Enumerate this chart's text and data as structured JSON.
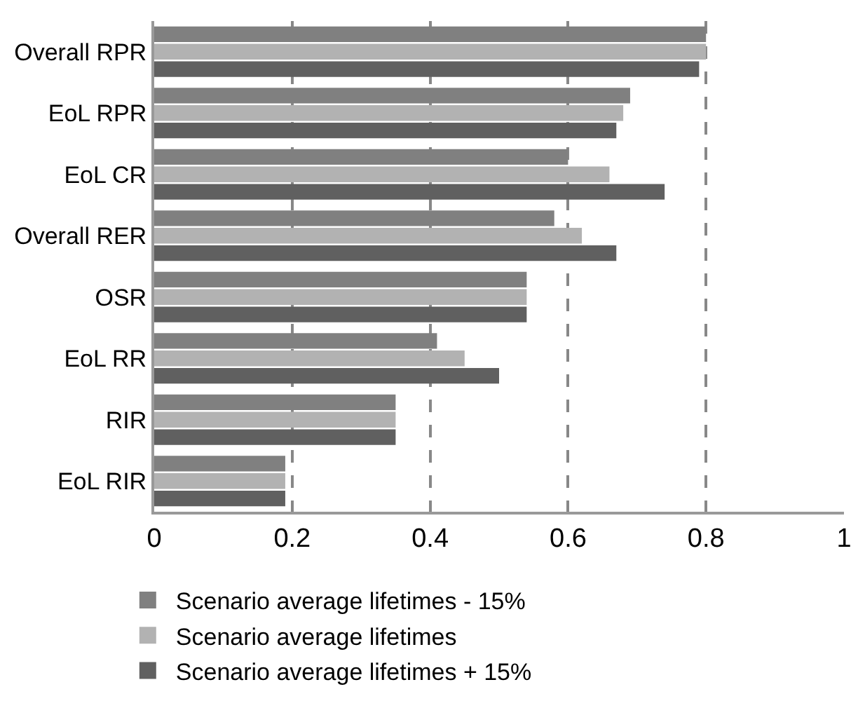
{
  "chart_data": {
    "type": "bar",
    "orientation": "horizontal",
    "categories": [
      "Overall RPR",
      "EoL RPR",
      "EoL CR",
      "Overall RER",
      "OSR",
      "EoL RR",
      "RIR",
      "EoL RIR"
    ],
    "series": [
      {
        "name": "Scenario average lifetimes - 15%",
        "color": "#808080",
        "values": [
          0.8,
          0.69,
          0.6,
          0.58,
          0.54,
          0.41,
          0.35,
          0.19
        ]
      },
      {
        "name": "Scenario average lifetimes",
        "color": "#b2b2b2",
        "values": [
          0.8,
          0.68,
          0.66,
          0.62,
          0.54,
          0.45,
          0.35,
          0.19
        ]
      },
      {
        "name": "Scenario average lifetimes + 15%",
        "color": "#606060",
        "values": [
          0.79,
          0.67,
          0.74,
          0.67,
          0.54,
          0.5,
          0.35,
          0.19
        ]
      }
    ],
    "xlim": [
      0,
      1
    ],
    "xticks": [
      0,
      0.2,
      0.4,
      0.6,
      0.8,
      1
    ],
    "grid": "x",
    "line_style": "dashed",
    "legend": "bottom"
  }
}
